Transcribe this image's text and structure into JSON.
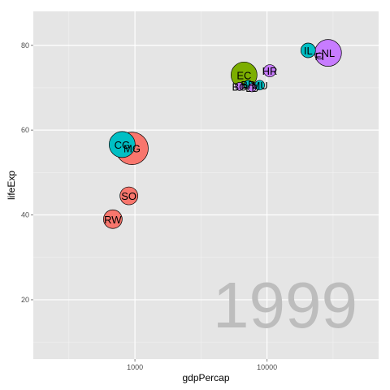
{
  "chart_data": {
    "type": "scatter",
    "xlabel": "gdpPercap",
    "ylabel": "lifeExp",
    "x_scale": "log10",
    "xlim": [
      170,
      70000
    ],
    "ylim": [
      6,
      88
    ],
    "x_ticks": [
      {
        "value": 1000,
        "label": "1000"
      },
      {
        "value": 10000,
        "label": "10000"
      }
    ],
    "x_minor_ticks": [
      316.23,
      3162.28,
      31622.78
    ],
    "y_ticks": [
      {
        "value": 20,
        "label": "20"
      },
      {
        "value": 40,
        "label": "40"
      },
      {
        "value": 60,
        "label": "60"
      },
      {
        "value": 80,
        "label": "80"
      }
    ],
    "y_minor_ticks": [
      10,
      30,
      50,
      70
    ],
    "grid": true,
    "legend": "none",
    "annotation": "1999",
    "colors": {
      "panel": "#e5e5e5",
      "grid_major": "#ffffff",
      "grid_minor": "#f2f2f2",
      "year": "#bdbdbd"
    },
    "points": [
      {
        "label": "NL",
        "x": 29000,
        "y": 78.2,
        "size": 33,
        "color": "#c77cff"
      },
      {
        "label": "IL",
        "x": 20500,
        "y": 78.8,
        "size": 18,
        "color": "#00bfc4"
      },
      {
        "label": "FI",
        "x": 25000,
        "y": 77.5,
        "size": 8,
        "color": "#c77cff"
      },
      {
        "label": "HR",
        "x": 10500,
        "y": 74.0,
        "size": 15,
        "color": "#c77cff"
      },
      {
        "label": "EC",
        "x": 6700,
        "y": 73.0,
        "size": 32,
        "color": "#7cae00"
      },
      {
        "label": "BR",
        "x": 7200,
        "y": 70.8,
        "size": 10,
        "color": "#00bfc4"
      },
      {
        "label": "MU",
        "x": 8800,
        "y": 70.6,
        "size": 12,
        "color": "#00bfc4"
      },
      {
        "label": "BG",
        "x": 6200,
        "y": 70.3,
        "size": 10,
        "color": "#c77cff"
      },
      {
        "label": "LB",
        "x": 7700,
        "y": 70.0,
        "size": 10,
        "color": "#c77cff"
      },
      {
        "label": "CG",
        "x": 800,
        "y": 56.6,
        "size": 32,
        "color": "#00bfc4"
      },
      {
        "label": "MG",
        "x": 950,
        "y": 55.7,
        "size": 40,
        "color": "#f8766d"
      },
      {
        "label": "SO",
        "x": 900,
        "y": 44.5,
        "size": 22,
        "color": "#f8766d"
      },
      {
        "label": "RW",
        "x": 680,
        "y": 39.0,
        "size": 23,
        "color": "#f8766d"
      }
    ]
  }
}
